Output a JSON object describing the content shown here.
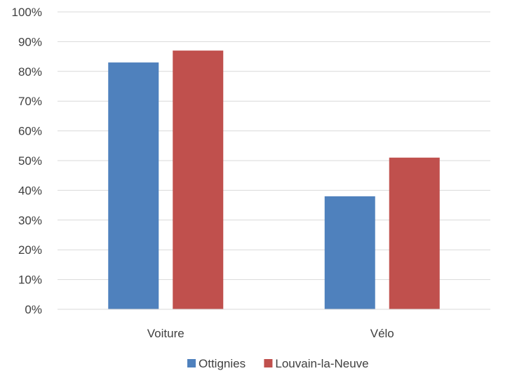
{
  "chart_data": {
    "type": "bar",
    "categories": [
      "Voiture",
      "Vélo"
    ],
    "series": [
      {
        "name": "Ottignies",
        "values": [
          83,
          38
        ],
        "color": "#4f81bd"
      },
      {
        "name": "Louvain-la-Neuve",
        "values": [
          87,
          51
        ],
        "color": "#c0504d"
      }
    ],
    "ylim": [
      0,
      100
    ],
    "yticks": [
      "0%",
      "10%",
      "20%",
      "30%",
      "40%",
      "50%",
      "60%",
      "70%",
      "80%",
      "90%",
      "100%"
    ],
    "grid": true,
    "legend_position": "bottom"
  }
}
